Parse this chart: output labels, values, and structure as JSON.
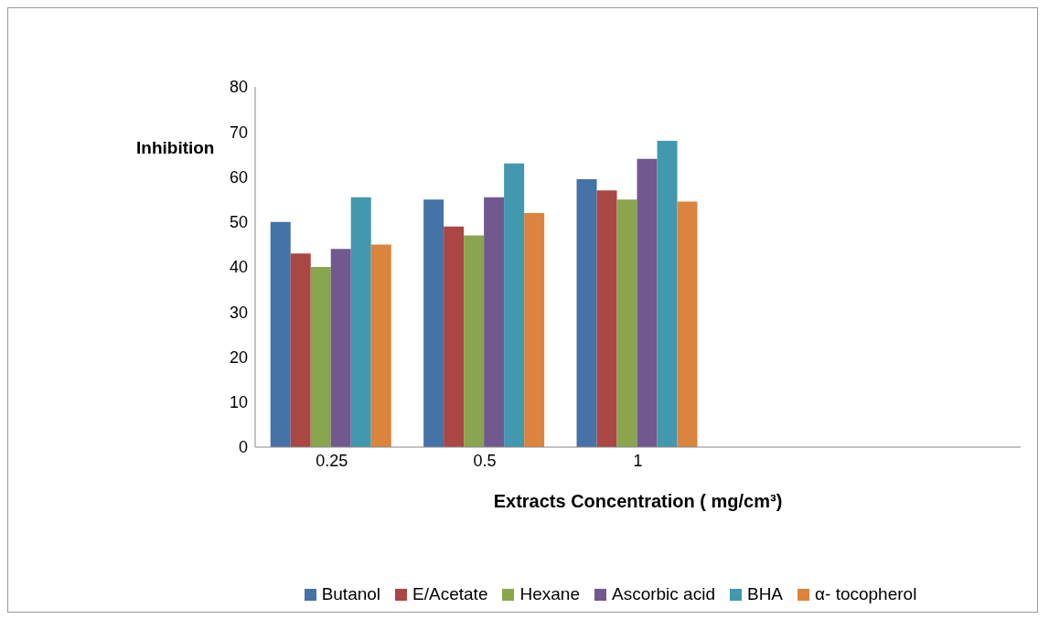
{
  "chart_data": {
    "type": "bar",
    "ylabel": "Inhibition",
    "xlabel": "Extracts Concentration ( mg/cm³)",
    "categories": [
      "0.25",
      "0.5",
      "1",
      null,
      null
    ],
    "series": [
      {
        "name": "Butanol",
        "color": "#4572a7",
        "values": [
          50,
          55,
          59.5,
          null,
          null
        ]
      },
      {
        "name": "E/Acetate",
        "color": "#aa4643",
        "values": [
          43,
          49,
          57,
          null,
          null
        ]
      },
      {
        "name": "Hexane",
        "color": "#89a54e",
        "values": [
          40,
          47,
          55,
          null,
          null
        ]
      },
      {
        "name": "Ascorbic acid",
        "color": "#71588f",
        "values": [
          44,
          55.5,
          64,
          null,
          null
        ]
      },
      {
        "name": "BHA",
        "color": "#4198af",
        "values": [
          55.5,
          63,
          68,
          null,
          null
        ]
      },
      {
        "name": "α- tocopherol",
        "color": "#db843d",
        "values": [
          45,
          52,
          54.5,
          null,
          null
        ]
      }
    ],
    "ylim": [
      0,
      80
    ],
    "yticks": [
      0,
      10,
      20,
      30,
      40,
      50,
      60,
      70,
      80
    ],
    "grid": false,
    "legend": "bottom"
  }
}
